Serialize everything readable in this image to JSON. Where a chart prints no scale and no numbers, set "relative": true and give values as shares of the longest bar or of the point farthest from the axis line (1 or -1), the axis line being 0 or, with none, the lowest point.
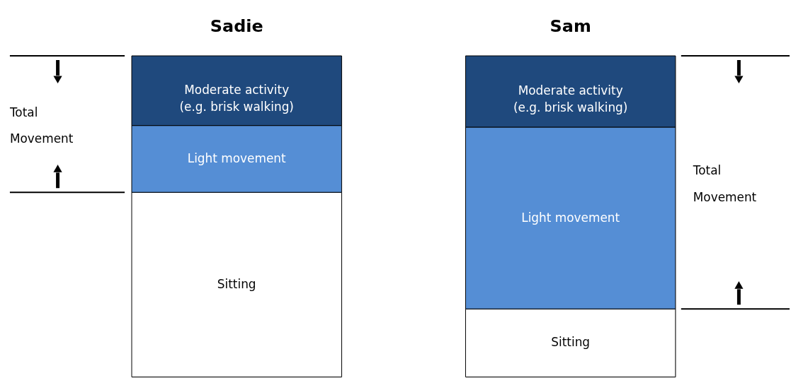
{
  "chart_data": [
    {
      "type": "bar",
      "title": "Sadie",
      "stacked": true,
      "relative": true,
      "categories": [
        null
      ],
      "series": [
        {
          "name": "Sitting",
          "color": "#ffffff",
          "values": [
            0.575
          ]
        },
        {
          "name": "Light movement",
          "color": "#558ed5",
          "values": [
            0.208
          ]
        },
        {
          "name": "Moderate activity\n(e.g. brisk walking)",
          "color": "#1f497d",
          "values": [
            0.217
          ]
        }
      ],
      "annotations": [
        "Total Movement"
      ]
    },
    {
      "type": "bar",
      "title": "Sam",
      "stacked": true,
      "relative": true,
      "categories": [
        null
      ],
      "series": [
        {
          "name": "Sitting",
          "color": "#ffffff",
          "values": [
            0.212
          ]
        },
        {
          "name": "Light movement",
          "color": "#558ed5",
          "values": [
            0.566
          ]
        },
        {
          "name": "Moderate activity\n(e.g. brisk walking)",
          "color": "#1f497d",
          "values": [
            0.222
          ]
        }
      ],
      "annotations": [
        "Total Movement"
      ]
    }
  ]
}
